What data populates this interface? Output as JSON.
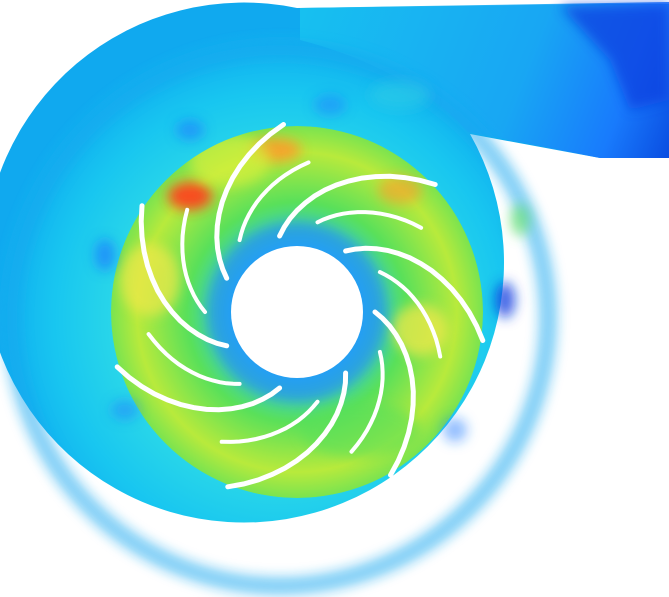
{
  "image": {
    "description_colors": {
      "background": "#ffffff",
      "deep_blue": "#0a3fe0",
      "blue": "#1d7bff",
      "cyan": "#16c8f0",
      "aqua": "#3ce6d6",
      "green": "#59e05a",
      "yellow_green": "#b8ea3c",
      "yellow": "#f2e84a",
      "orange": "#ff9a2a",
      "red": "#ff3a1e",
      "blade": "#ffffff"
    },
    "blade_count": 14
  }
}
